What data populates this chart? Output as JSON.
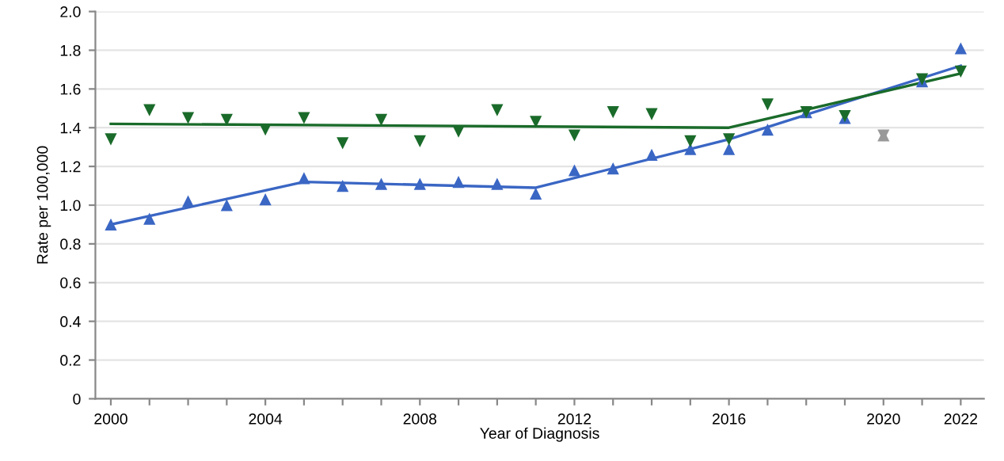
{
  "chart_data": {
    "type": "scatter",
    "xlabel": "Year of Diagnosis",
    "ylabel": "Rate per 100,000",
    "xlim": [
      1999.6,
      2022.6
    ],
    "ylim": [
      0,
      2.0
    ],
    "xticks": [
      {
        "value": 2000,
        "label": "2000"
      },
      {
        "value": 2001,
        "label": null
      },
      {
        "value": 2002,
        "label": null
      },
      {
        "value": 2003,
        "label": null
      },
      {
        "value": 2004,
        "label": "2004"
      },
      {
        "value": 2005,
        "label": null
      },
      {
        "value": 2006,
        "label": null
      },
      {
        "value": 2007,
        "label": null
      },
      {
        "value": 2008,
        "label": "2008"
      },
      {
        "value": 2009,
        "label": null
      },
      {
        "value": 2010,
        "label": null
      },
      {
        "value": 2011,
        "label": null
      },
      {
        "value": 2012,
        "label": "2012"
      },
      {
        "value": 2013,
        "label": null
      },
      {
        "value": 2014,
        "label": null
      },
      {
        "value": 2015,
        "label": null
      },
      {
        "value": 2016,
        "label": "2016"
      },
      {
        "value": 2017,
        "label": null
      },
      {
        "value": 2018,
        "label": null
      },
      {
        "value": 2019,
        "label": null
      },
      {
        "value": 2020,
        "label": "2020"
      },
      {
        "value": 2021,
        "label": null
      },
      {
        "value": 2022,
        "label": "2022"
      }
    ],
    "yticks": [
      0,
      0.2,
      0.4,
      0.6,
      0.8,
      {
        "value": 1.0,
        "label": "1.0"
      },
      1.2,
      1.4,
      1.6,
      1.8,
      {
        "value": 2.0,
        "label": "2.0"
      }
    ],
    "grid": "y",
    "series": [
      {
        "marker": "triangle",
        "color": "#3a66c4",
        "x": [
          2000,
          2001,
          2002,
          2003,
          2004,
          2005,
          2006,
          2007,
          2008,
          2009,
          2010,
          2011,
          2012,
          2013,
          2014,
          2015,
          2016,
          2017,
          2018,
          2019,
          2021,
          2022
        ],
        "values": [
          0.9,
          0.93,
          1.02,
          1.0,
          1.03,
          1.14,
          1.1,
          1.11,
          1.11,
          1.12,
          1.11,
          1.06,
          1.18,
          1.19,
          1.26,
          1.29,
          1.29,
          1.39,
          1.48,
          1.45,
          1.64,
          1.81
        ]
      },
      {
        "marker": "triangle_down",
        "color": "#1a6b2a",
        "x": [
          2000,
          2001,
          2002,
          2003,
          2004,
          2005,
          2006,
          2007,
          2008,
          2009,
          2010,
          2011,
          2012,
          2013,
          2014,
          2015,
          2016,
          2017,
          2018,
          2019,
          2021,
          2022
        ],
        "values": [
          1.34,
          1.49,
          1.45,
          1.44,
          1.39,
          1.45,
          1.32,
          1.44,
          1.33,
          1.38,
          1.49,
          1.43,
          1.36,
          1.48,
          1.47,
          1.33,
          1.34,
          1.52,
          1.48,
          1.46,
          1.65,
          1.69
        ]
      },
      {
        "marker": "triangle",
        "color": "#999999",
        "x": [
          2020
        ],
        "values": [
          1.36
        ]
      },
      {
        "marker": "triangle_down",
        "color": "#999999",
        "x": [
          2020
        ],
        "values": [
          1.36
        ]
      },
      {
        "type": "line",
        "marker": "none",
        "color": "#3a66c4",
        "x": [
          2000,
          2005,
          2011,
          2016,
          2022
        ],
        "values": [
          0.9,
          1.12,
          1.09,
          1.34,
          1.72
        ]
      },
      {
        "type": "line",
        "marker": "none",
        "color": "#1a6b2a",
        "x": [
          2000,
          2016,
          2022
        ],
        "values": [
          1.42,
          1.4,
          1.68
        ]
      }
    ]
  }
}
